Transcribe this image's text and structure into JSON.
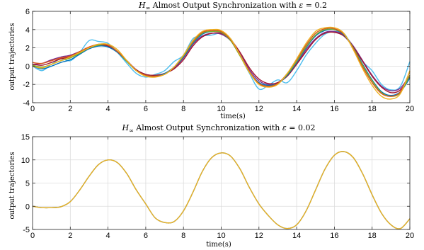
{
  "chart_data": [
    {
      "type": "line",
      "title": "H∞ Almost Output Synchronization with ε = 0.2",
      "title_parts": {
        "h": "H",
        "sub": "∞",
        "rest": " Almost Output Synchronization with ",
        "eps": "ε",
        "eq": " = 0.2"
      },
      "xlabel": "time(s)",
      "ylabel": "output trajectories",
      "xlim": [
        0,
        20
      ],
      "ylim": [
        -4,
        6
      ],
      "xticks": [
        0,
        2,
        4,
        6,
        8,
        10,
        12,
        14,
        16,
        18,
        20
      ],
      "yticks": [
        -4,
        -2,
        0,
        2,
        4,
        6
      ],
      "grid": true,
      "x": [
        0,
        0.5,
        1,
        1.5,
        2,
        2.5,
        3,
        3.5,
        4,
        4.5,
        5,
        5.5,
        6,
        6.5,
        7,
        7.5,
        8,
        8.5,
        9,
        9.5,
        10,
        10.5,
        11,
        11.5,
        12,
        12.5,
        13,
        13.5,
        14,
        14.5,
        15,
        15.5,
        16,
        16.5,
        17,
        17.5,
        18,
        18.5,
        19,
        19.5,
        20
      ],
      "series": [
        {
          "color": "#4DBEEE",
          "values": [
            0,
            -0.5,
            0.2,
            0.8,
            0.6,
            1.5,
            2.8,
            2.7,
            2.5,
            1.5,
            0.3,
            -0.8,
            -1.2,
            -0.9,
            -0.5,
            0.5,
            1.2,
            3.0,
            3.3,
            3.4,
            3.6,
            3.0,
            1.2,
            -0.8,
            -2.5,
            -2.1,
            -1.5,
            -1.8,
            -0.5,
            1.2,
            2.5,
            3.5,
            3.8,
            3.6,
            2.0,
            0.5,
            -0.5,
            -2.0,
            -2.6,
            -2.2,
            0.5
          ]
        },
        {
          "color": "#7E2F8E",
          "values": [
            0.2,
            0.3,
            0.7,
            1.0,
            1.2,
            1.6,
            2.0,
            2.3,
            2.2,
            1.6,
            0.6,
            -0.4,
            -0.9,
            -1.0,
            -0.8,
            -0.2,
            0.9,
            2.4,
            3.3,
            3.6,
            3.5,
            2.8,
            1.3,
            -0.4,
            -1.6,
            -2.0,
            -1.8,
            -1.0,
            0.3,
            1.8,
            3.0,
            3.7,
            3.8,
            3.4,
            2.2,
            0.6,
            -1.0,
            -2.2,
            -2.7,
            -2.4,
            -1.0
          ]
        },
        {
          "color": "#A2142F",
          "values": [
            0.2,
            0.1,
            0.4,
            0.8,
            1.0,
            1.5,
            2.0,
            2.3,
            2.2,
            1.6,
            0.6,
            -0.4,
            -0.9,
            -1.0,
            -0.8,
            -0.3,
            0.7,
            2.2,
            3.2,
            3.6,
            3.6,
            2.9,
            1.5,
            -0.2,
            -1.4,
            -1.9,
            -1.8,
            -1.1,
            0.2,
            1.6,
            2.9,
            3.6,
            3.7,
            3.3,
            2.1,
            0.5,
            -1.1,
            -2.3,
            -2.9,
            -2.6,
            -1.2
          ]
        },
        {
          "color": "#0072BD",
          "values": [
            0.0,
            -0.3,
            0.0,
            0.4,
            0.7,
            1.3,
            1.9,
            2.2,
            2.1,
            1.5,
            0.5,
            -0.5,
            -1.0,
            -1.1,
            -0.8,
            -0.1,
            1.0,
            2.5,
            3.5,
            3.8,
            3.7,
            2.8,
            1.2,
            -0.6,
            -1.8,
            -2.1,
            -1.9,
            -1.0,
            0.4,
            2.0,
            3.3,
            3.9,
            4.0,
            3.4,
            2.0,
            0.2,
            -1.5,
            -2.8,
            -3.2,
            -2.8,
            -1.3
          ]
        },
        {
          "color": "#77AC30",
          "values": [
            0.1,
            -0.1,
            0.2,
            0.6,
            0.9,
            1.4,
            2.0,
            2.3,
            2.3,
            1.6,
            0.5,
            -0.5,
            -1.0,
            -1.1,
            -0.9,
            -0.1,
            1.1,
            2.6,
            3.6,
            3.8,
            3.7,
            2.8,
            1.1,
            -0.7,
            -1.9,
            -2.2,
            -1.9,
            -0.9,
            0.5,
            2.1,
            3.4,
            4.0,
            4.0,
            3.5,
            2.0,
            0.1,
            -1.6,
            -2.9,
            -3.3,
            -2.9,
            -1.0
          ]
        },
        {
          "color": "#D95319",
          "values": [
            0.4,
            0.3,
            0.6,
            0.9,
            1.1,
            1.6,
            2.1,
            2.4,
            2.3,
            1.6,
            0.6,
            -0.5,
            -1.0,
            -1.1,
            -0.9,
            -0.1,
            1.2,
            2.7,
            3.7,
            3.9,
            3.8,
            2.9,
            1.2,
            -0.6,
            -1.9,
            -2.2,
            -1.9,
            -0.8,
            0.7,
            2.3,
            3.6,
            4.1,
            4.1,
            3.5,
            1.9,
            -0.1,
            -1.8,
            -3.0,
            -3.3,
            -2.8,
            -0.6
          ]
        },
        {
          "color": "#EDB120",
          "values": [
            0.0,
            -0.2,
            0.2,
            0.6,
            1.0,
            1.5,
            2.0,
            2.4,
            2.4,
            1.8,
            0.6,
            -0.5,
            -1.1,
            -1.2,
            -0.9,
            -0.1,
            1.2,
            2.8,
            3.8,
            4.0,
            3.9,
            3.0,
            1.2,
            -0.7,
            -2.0,
            -2.3,
            -2.0,
            -0.8,
            0.8,
            2.5,
            3.8,
            4.2,
            4.2,
            3.6,
            1.8,
            -0.3,
            -2.1,
            -3.3,
            -3.6,
            -3.0,
            -0.5
          ]
        }
      ]
    },
    {
      "type": "line",
      "title": "H∞ Almost Output Synchronization with ε = 0.02",
      "title_parts": {
        "h": "H",
        "sub": "∞",
        "rest": " Almost Output Synchronization with ",
        "eps": "ε",
        "eq": " = 0.02"
      },
      "xlabel": "time(s)",
      "ylabel": "output trajectories",
      "xlim": [
        0,
        20
      ],
      "ylim": [
        -5,
        15
      ],
      "xticks": [
        0,
        2,
        4,
        6,
        8,
        10,
        12,
        14,
        16,
        18,
        20
      ],
      "yticks": [
        -5,
        0,
        5,
        10,
        15
      ],
      "grid": true,
      "x": [
        0,
        0.5,
        1,
        1.5,
        2,
        2.5,
        3,
        3.5,
        4,
        4.5,
        5,
        5.5,
        6,
        6.5,
        7,
        7.5,
        8,
        8.5,
        9,
        9.5,
        10,
        10.5,
        11,
        11.5,
        12,
        12.5,
        13,
        13.5,
        14,
        14.5,
        15,
        15.5,
        16,
        16.5,
        17,
        17.5,
        18,
        18.5,
        19,
        19.5,
        20
      ],
      "series": [
        {
          "color": "#0072BD",
          "values": [
            0,
            -0.3,
            -0.3,
            -0.1,
            1.0,
            3.5,
            6.5,
            9.0,
            10.0,
            9.4,
            7.0,
            3.5,
            0.5,
            -2.5,
            -3.5,
            -3.3,
            -1.0,
            3.0,
            7.5,
            10.5,
            11.5,
            10.8,
            8.0,
            4.0,
            0.5,
            -2.0,
            -4.0,
            -4.8,
            -4.0,
            -1.0,
            3.5,
            8.0,
            11.0,
            11.8,
            10.5,
            7.0,
            2.5,
            -1.5,
            -4.0,
            -4.8,
            -2.7
          ]
        },
        {
          "color": "#EDB120",
          "values": [
            0,
            -0.3,
            -0.3,
            -0.1,
            1.0,
            3.5,
            6.5,
            9.0,
            10.0,
            9.4,
            7.0,
            3.5,
            0.5,
            -2.5,
            -3.5,
            -3.3,
            -1.0,
            3.0,
            7.5,
            10.5,
            11.5,
            10.8,
            8.0,
            4.0,
            0.5,
            -2.0,
            -4.0,
            -4.8,
            -4.0,
            -1.0,
            3.5,
            8.0,
            11.0,
            11.8,
            10.5,
            7.0,
            2.5,
            -1.5,
            -4.0,
            -4.8,
            -2.7
          ]
        }
      ]
    }
  ]
}
